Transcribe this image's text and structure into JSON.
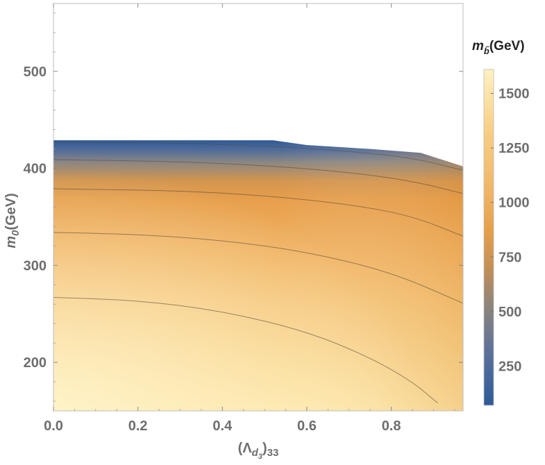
{
  "chart_data": {
    "type": "heatmap",
    "xlabel": {
      "base": "(Λ",
      "sub": "d",
      "subsub": "3",
      "tail": ")",
      "tailsub": "33"
    },
    "ylabel": {
      "base": "m",
      "sub": "0",
      "tail": "(GeV)"
    },
    "colorbar": {
      "label": {
        "base": "m",
        "sub": "b̃",
        "tail": "(GeV)"
      },
      "range": [
        70,
        1610
      ],
      "ticks": [
        "250",
        "500",
        "750",
        "1000",
        "1250",
        "1500"
      ],
      "tick_values": [
        250,
        500,
        750,
        1000,
        1250,
        1500
      ],
      "gradient": [
        {
          "value": 70,
          "color": "#2e5a98"
        },
        {
          "value": 300,
          "color": "#58709c"
        },
        {
          "value": 520,
          "color": "#8b847c"
        },
        {
          "value": 700,
          "color": "#c38f56"
        },
        {
          "value": 870,
          "color": "#e59f4b"
        },
        {
          "value": 1050,
          "color": "#f0b565"
        },
        {
          "value": 1350,
          "color": "#f8d188"
        },
        {
          "value": 1610,
          "color": "#fff1c2"
        }
      ]
    },
    "x_ticks": [
      "0.0",
      "0.2",
      "0.4",
      "0.6",
      "0.8"
    ],
    "x_tick_values": [
      0.0,
      0.2,
      0.4,
      0.6,
      0.8
    ],
    "y_ticks": [
      "200",
      "300",
      "400",
      "500"
    ],
    "y_tick_values": [
      200,
      300,
      400,
      500
    ],
    "xlim": [
      0,
      0.97
    ],
    "ylim": [
      150,
      570
    ],
    "boundary": [
      [
        0.0,
        429
      ],
      [
        0.52,
        429
      ],
      [
        0.6,
        424
      ],
      [
        0.75,
        420
      ],
      [
        0.87,
        416
      ],
      [
        0.97,
        402
      ]
    ],
    "contours": [
      [
        [
          0.0,
          427
        ],
        [
          0.3,
          426
        ],
        [
          0.52,
          423
        ],
        [
          0.75,
          416
        ],
        [
          0.87,
          409
        ],
        [
          0.97,
          398
        ]
      ],
      [
        [
          0.0,
          409
        ],
        [
          0.3,
          407
        ],
        [
          0.5,
          403
        ],
        [
          0.7,
          396
        ],
        [
          0.85,
          387
        ],
        [
          0.97,
          374
        ]
      ],
      [
        [
          0.0,
          379
        ],
        [
          0.3,
          377
        ],
        [
          0.5,
          372
        ],
        [
          0.7,
          363
        ],
        [
          0.85,
          351
        ],
        [
          0.97,
          330
        ]
      ],
      [
        [
          0.0,
          334
        ],
        [
          0.2,
          332
        ],
        [
          0.4,
          326
        ],
        [
          0.6,
          314
        ],
        [
          0.8,
          293
        ],
        [
          0.97,
          261
        ]
      ],
      [
        [
          0.0,
          267
        ],
        [
          0.2,
          264
        ],
        [
          0.4,
          253
        ],
        [
          0.6,
          232
        ],
        [
          0.75,
          205
        ],
        [
          0.85,
          180
        ],
        [
          0.91,
          158
        ]
      ]
    ]
  }
}
